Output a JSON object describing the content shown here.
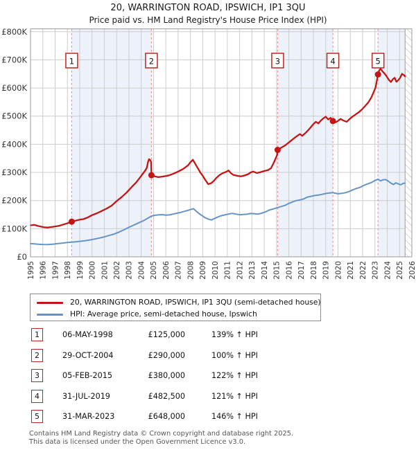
{
  "title": "20, WARRINGTON ROAD, IPSWICH, IP1 3QU",
  "subtitle": "Price paid vs. HM Land Registry's House Price Index (HPI)",
  "legend": {
    "items": [
      {
        "label": "20, WARRINGTON ROAD, IPSWICH, IP1 3QU (semi-detached house)",
        "color": "#c41414"
      },
      {
        "label": "HPI: Average price, semi-detached house, Ipswich",
        "color": "#6494c6"
      }
    ]
  },
  "table": {
    "rows": [
      {
        "num": "1",
        "date": "06-MAY-1998",
        "price": "£125,000",
        "vs_hpi": "139% ↑ HPI"
      },
      {
        "num": "2",
        "date": "29-OCT-2004",
        "price": "£290,000",
        "vs_hpi": "100% ↑ HPI"
      },
      {
        "num": "3",
        "date": "05-FEB-2015",
        "price": "£380,000",
        "vs_hpi": "122% ↑ HPI"
      },
      {
        "num": "4",
        "date": "31-JUL-2019",
        "price": "£482,500",
        "vs_hpi": "121% ↑ HPI"
      },
      {
        "num": "5",
        "date": "31-MAR-2023",
        "price": "£648,000",
        "vs_hpi": "146% ↑ HPI"
      }
    ]
  },
  "footer": {
    "line1": "Contains HM Land Registry data © Crown copyright and database right 2025.",
    "line2": "This data is licensed under the Open Government Licence v3.0."
  },
  "chart_data": {
    "type": "line",
    "title": "20, WARRINGTON ROAD, IPSWICH, IP1 3QU",
    "subtitle": "Price paid vs. HM Land Registry's House Price Index (HPI)",
    "xlim": [
      1995,
      2026
    ],
    "ylim": [
      0,
      810000
    ],
    "grid": true,
    "colors": {
      "grid": "#cccccc",
      "border": "#999999",
      "band": "#edf1fa",
      "sale_line": "#f09494",
      "sale_box_border": "#c42222",
      "hatch": "#bbbbbb",
      "tick_text": "#333333"
    },
    "yticks": [
      {
        "value": 0,
        "label": "£0"
      },
      {
        "value": 100000,
        "label": "£100K"
      },
      {
        "value": 200000,
        "label": "£200K"
      },
      {
        "value": 300000,
        "label": "£300K"
      },
      {
        "value": 400000,
        "label": "£400K"
      },
      {
        "value": 500000,
        "label": "£500K"
      },
      {
        "value": 600000,
        "label": "£600K"
      },
      {
        "value": 700000,
        "label": "£700K"
      },
      {
        "value": 800000,
        "label": "£800K"
      }
    ],
    "xticks": [
      1995,
      1996,
      1997,
      1998,
      1999,
      2000,
      2001,
      2002,
      2003,
      2004,
      2005,
      2006,
      2007,
      2008,
      2009,
      2010,
      2011,
      2012,
      2013,
      2014,
      2015,
      2016,
      2017,
      2018,
      2019,
      2020,
      2021,
      2022,
      2023,
      2024,
      2025,
      2026
    ],
    "bands": [
      [
        1998.35,
        2004.83
      ],
      [
        2015.09,
        2019.58
      ],
      [
        2023.25,
        2025.45
      ]
    ],
    "hatch_start": 2025.45,
    "sales": [
      {
        "n": "1",
        "date": "06-MAY-1998",
        "year": 1998.35,
        "price": 125000
      },
      {
        "n": "2",
        "date": "29-OCT-2004",
        "year": 2004.83,
        "price": 290000
      },
      {
        "n": "3",
        "date": "05-FEB-2015",
        "year": 2015.09,
        "price": 380000
      },
      {
        "n": "4",
        "date": "31-JUL-2019",
        "year": 2019.58,
        "price": 482500
      },
      {
        "n": "5",
        "date": "31-MAR-2023",
        "year": 2023.25,
        "price": 648000
      }
    ],
    "series": [
      {
        "name": "20, WARRINGTON ROAD, IPSWICH, IP1 3QU (semi-detached house)",
        "color": "#c41414",
        "width": 2.3,
        "points": [
          [
            1995.0,
            112000
          ],
          [
            1995.3,
            114000
          ],
          [
            1995.55,
            110500
          ],
          [
            1995.8,
            108000
          ],
          [
            1996.1,
            105000
          ],
          [
            1996.4,
            104000
          ],
          [
            1996.7,
            106000
          ],
          [
            1997.0,
            108000
          ],
          [
            1997.3,
            110000
          ],
          [
            1997.6,
            114000
          ],
          [
            1997.95,
            118500
          ],
          [
            1998.35,
            125000
          ],
          [
            1998.7,
            129000
          ],
          [
            1999.0,
            132000
          ],
          [
            1999.3,
            134000
          ],
          [
            1999.6,
            139000
          ],
          [
            2000.0,
            148000
          ],
          [
            2000.4,
            155000
          ],
          [
            2000.8,
            163000
          ],
          [
            2001.2,
            172000
          ],
          [
            2001.6,
            182000
          ],
          [
            2002.0,
            198000
          ],
          [
            2002.4,
            212000
          ],
          [
            2002.8,
            228000
          ],
          [
            2003.2,
            247000
          ],
          [
            2003.6,
            265000
          ],
          [
            2003.9,
            282000
          ],
          [
            2004.1,
            294000
          ],
          [
            2004.3,
            305000
          ],
          [
            2004.45,
            316000
          ],
          [
            2004.55,
            336000
          ],
          [
            2004.63,
            347000
          ],
          [
            2004.72,
            344000
          ],
          [
            2004.8,
            338000
          ],
          [
            2004.83,
            290000
          ],
          [
            2005.1,
            286000
          ],
          [
            2005.4,
            283000
          ],
          [
            2005.7,
            285000
          ],
          [
            2006.0,
            287000
          ],
          [
            2006.3,
            290000
          ],
          [
            2006.6,
            295000
          ],
          [
            2007.0,
            303000
          ],
          [
            2007.4,
            312000
          ],
          [
            2007.8,
            325000
          ],
          [
            2008.0,
            336000
          ],
          [
            2008.2,
            345000
          ],
          [
            2008.4,
            330000
          ],
          [
            2008.6,
            315000
          ],
          [
            2008.8,
            300000
          ],
          [
            2009.0,
            288000
          ],
          [
            2009.2,
            274000
          ],
          [
            2009.45,
            258000
          ],
          [
            2009.7,
            262000
          ],
          [
            2009.9,
            270000
          ],
          [
            2010.1,
            280000
          ],
          [
            2010.35,
            290000
          ],
          [
            2010.6,
            297000
          ],
          [
            2010.9,
            302000
          ],
          [
            2011.1,
            307000
          ],
          [
            2011.3,
            297000
          ],
          [
            2011.5,
            291000
          ],
          [
            2011.8,
            288000
          ],
          [
            2012.1,
            286000
          ],
          [
            2012.4,
            289000
          ],
          [
            2012.7,
            294000
          ],
          [
            2012.9,
            300000
          ],
          [
            2013.1,
            303000
          ],
          [
            2013.4,
            298000
          ],
          [
            2013.7,
            301000
          ],
          [
            2014.0,
            305000
          ],
          [
            2014.3,
            308000
          ],
          [
            2014.55,
            315000
          ],
          [
            2014.75,
            332000
          ],
          [
            2014.95,
            352000
          ],
          [
            2015.05,
            362000
          ],
          [
            2015.09,
            380000
          ],
          [
            2015.3,
            386000
          ],
          [
            2015.7,
            396000
          ],
          [
            2016.1,
            410000
          ],
          [
            2016.5,
            424000
          ],
          [
            2016.9,
            436000
          ],
          [
            2017.1,
            430000
          ],
          [
            2017.4,
            442000
          ],
          [
            2017.7,
            456000
          ],
          [
            2018.0,
            472000
          ],
          [
            2018.2,
            480000
          ],
          [
            2018.4,
            474000
          ],
          [
            2018.6,
            484000
          ],
          [
            2018.8,
            492000
          ],
          [
            2019.0,
            498000
          ],
          [
            2019.2,
            488000
          ],
          [
            2019.4,
            494000
          ],
          [
            2019.58,
            482500
          ],
          [
            2019.8,
            478000
          ],
          [
            2020.0,
            483000
          ],
          [
            2020.2,
            490000
          ],
          [
            2020.45,
            484000
          ],
          [
            2020.7,
            480000
          ],
          [
            2020.9,
            488000
          ],
          [
            2021.1,
            496000
          ],
          [
            2021.4,
            505000
          ],
          [
            2021.7,
            514000
          ],
          [
            2021.95,
            524000
          ],
          [
            2022.2,
            536000
          ],
          [
            2022.45,
            548000
          ],
          [
            2022.7,
            566000
          ],
          [
            2022.9,
            586000
          ],
          [
            2023.05,
            602000
          ],
          [
            2023.15,
            624000
          ],
          [
            2023.25,
            648000
          ],
          [
            2023.35,
            662000
          ],
          [
            2023.45,
            668000
          ],
          [
            2023.6,
            660000
          ],
          [
            2023.8,
            650000
          ],
          [
            2024.0,
            638000
          ],
          [
            2024.15,
            628000
          ],
          [
            2024.3,
            621000
          ],
          [
            2024.45,
            631000
          ],
          [
            2024.6,
            636000
          ],
          [
            2024.75,
            622000
          ],
          [
            2024.9,
            628000
          ],
          [
            2025.05,
            636000
          ],
          [
            2025.2,
            650000
          ],
          [
            2025.35,
            646000
          ],
          [
            2025.45,
            641000
          ]
        ]
      },
      {
        "name": "HPI: Average price, semi-detached house, Ipswich",
        "color": "#6494c6",
        "width": 2.0,
        "points": [
          [
            1995.0,
            47000
          ],
          [
            1995.3,
            46000
          ],
          [
            1995.6,
            45000
          ],
          [
            1996.0,
            44000
          ],
          [
            1996.4,
            43500
          ],
          [
            1996.8,
            45000
          ],
          [
            1997.2,
            47000
          ],
          [
            1997.6,
            49000
          ],
          [
            1998.0,
            51000
          ],
          [
            1998.35,
            52300
          ],
          [
            1998.7,
            53500
          ],
          [
            1999.0,
            55000
          ],
          [
            1999.4,
            57000
          ],
          [
            1999.8,
            60000
          ],
          [
            2000.2,
            63000
          ],
          [
            2000.6,
            67000
          ],
          [
            2001.0,
            71000
          ],
          [
            2001.4,
            76000
          ],
          [
            2001.8,
            81000
          ],
          [
            2002.2,
            88000
          ],
          [
            2002.6,
            96000
          ],
          [
            2003.0,
            105000
          ],
          [
            2003.4,
            113000
          ],
          [
            2003.8,
            121000
          ],
          [
            2004.2,
            129000
          ],
          [
            2004.6,
            139000
          ],
          [
            2004.83,
            145000
          ],
          [
            2005.1,
            147500
          ],
          [
            2005.4,
            149000
          ],
          [
            2005.7,
            150000
          ],
          [
            2006.0,
            148000
          ],
          [
            2006.3,
            149000
          ],
          [
            2006.6,
            152000
          ],
          [
            2006.9,
            155000
          ],
          [
            2007.2,
            158000
          ],
          [
            2007.5,
            161500
          ],
          [
            2007.8,
            165000
          ],
          [
            2008.0,
            168000
          ],
          [
            2008.25,
            171000
          ],
          [
            2008.5,
            161000
          ],
          [
            2008.75,
            152000
          ],
          [
            2009.0,
            145000
          ],
          [
            2009.2,
            139000
          ],
          [
            2009.45,
            134000
          ],
          [
            2009.7,
            131000
          ],
          [
            2009.9,
            135000
          ],
          [
            2010.2,
            141000
          ],
          [
            2010.5,
            146000
          ],
          [
            2010.8,
            149000
          ],
          [
            2011.1,
            152000
          ],
          [
            2011.4,
            154500
          ],
          [
            2011.7,
            152000
          ],
          [
            2012.0,
            149500
          ],
          [
            2012.3,
            150500
          ],
          [
            2012.6,
            151500
          ],
          [
            2012.9,
            154000
          ],
          [
            2013.2,
            153000
          ],
          [
            2013.5,
            152000
          ],
          [
            2013.8,
            155000
          ],
          [
            2014.1,
            160000
          ],
          [
            2014.4,
            166000
          ],
          [
            2014.7,
            170000
          ],
          [
            2015.09,
            175000
          ],
          [
            2015.4,
            179000
          ],
          [
            2015.7,
            183000
          ],
          [
            2016.0,
            190000
          ],
          [
            2016.3,
            195000
          ],
          [
            2016.6,
            200000
          ],
          [
            2016.9,
            202000
          ],
          [
            2017.2,
            206000
          ],
          [
            2017.5,
            212000
          ],
          [
            2017.8,
            215000
          ],
          [
            2018.1,
            218000
          ],
          [
            2018.4,
            219500
          ],
          [
            2018.7,
            222000
          ],
          [
            2019.0,
            225000
          ],
          [
            2019.3,
            227000
          ],
          [
            2019.58,
            228000
          ],
          [
            2019.8,
            226000
          ],
          [
            2020.0,
            224000
          ],
          [
            2020.3,
            225500
          ],
          [
            2020.6,
            228000
          ],
          [
            2020.9,
            232000
          ],
          [
            2021.2,
            238000
          ],
          [
            2021.5,
            243000
          ],
          [
            2021.8,
            247000
          ],
          [
            2022.1,
            254000
          ],
          [
            2022.4,
            259000
          ],
          [
            2022.7,
            264000
          ],
          [
            2023.0,
            271000
          ],
          [
            2023.25,
            276000
          ],
          [
            2023.45,
            270000
          ],
          [
            2023.65,
            273500
          ],
          [
            2023.85,
            274500
          ],
          [
            2024.05,
            270000
          ],
          [
            2024.3,
            262000
          ],
          [
            2024.5,
            257000
          ],
          [
            2024.7,
            263000
          ],
          [
            2024.9,
            259000
          ],
          [
            2025.1,
            256000
          ],
          [
            2025.3,
            261000
          ],
          [
            2025.45,
            262000
          ]
        ]
      }
    ]
  }
}
